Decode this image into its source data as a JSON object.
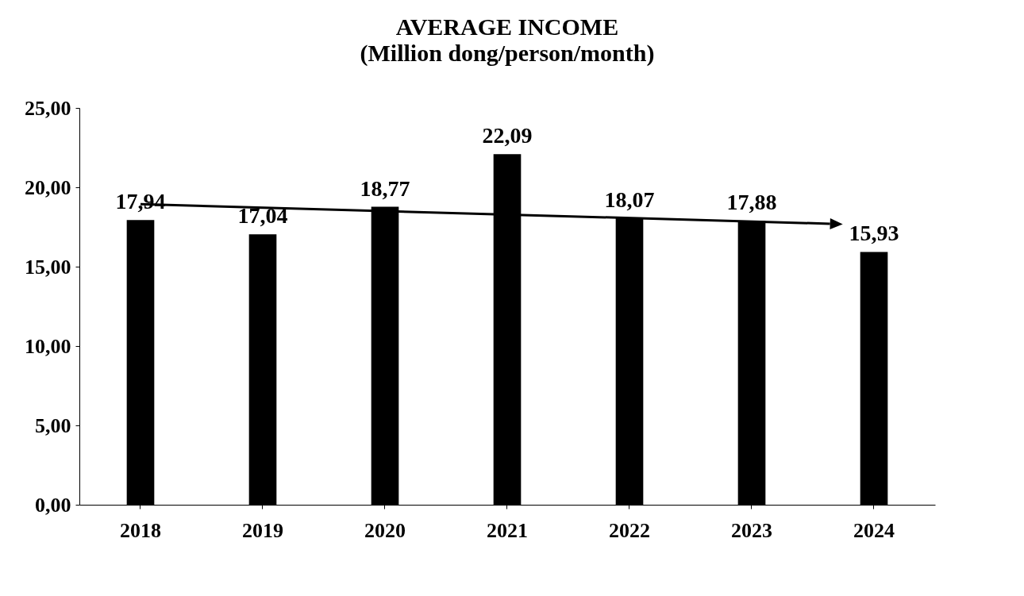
{
  "chart_data": {
    "type": "bar",
    "title": "AVERAGE INCOME",
    "subtitle": "(Million dong/person/month)",
    "categories": [
      "2018",
      "2019",
      "2020",
      "2021",
      "2022",
      "2023",
      "2024"
    ],
    "values": [
      17.94,
      17.04,
      18.77,
      22.09,
      18.07,
      17.88,
      15.93
    ],
    "value_labels": [
      "17,94",
      "17,04",
      "18,77",
      "22,09",
      "18,07",
      "17,88",
      "15,93"
    ],
    "color": "#000000",
    "ylim": [
      0,
      25
    ],
    "yticks": [
      {
        "value": 0,
        "label": "0,00"
      },
      {
        "value": 5,
        "label": "5,00"
      },
      {
        "value": 10,
        "label": "10,00"
      },
      {
        "value": 15,
        "label": "15,00"
      },
      {
        "value": 20,
        "label": "20,00"
      },
      {
        "value": 25,
        "label": "25,00"
      }
    ],
    "grid": false
  }
}
